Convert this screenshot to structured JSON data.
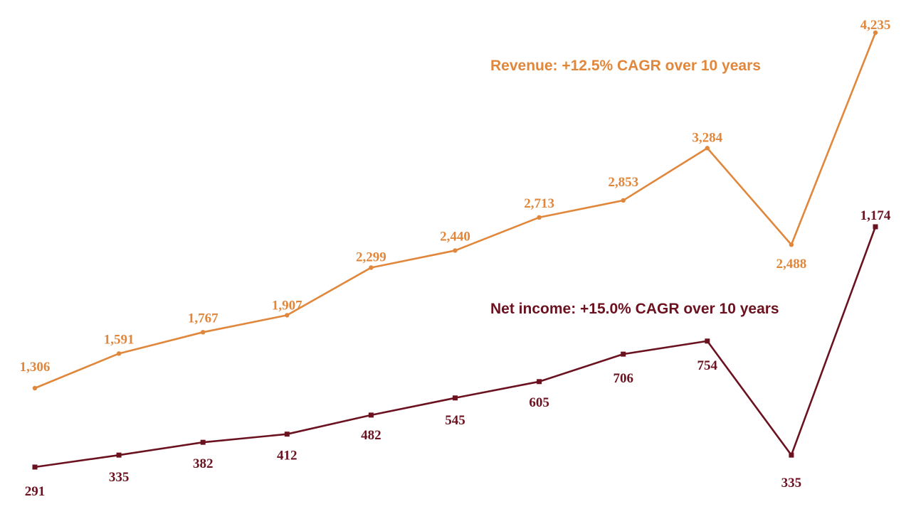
{
  "chart_data": {
    "type": "line",
    "title": "",
    "xlabel": "",
    "ylabel": "",
    "grid": false,
    "legend": "none",
    "categories": [
      "",
      "",
      "",
      "",
      "",
      "",
      "",
      "",
      "",
      "",
      ""
    ],
    "series": [
      {
        "key": "revenue",
        "color": "#e0873c",
        "values": [
          1306,
          1591,
          1767,
          1907,
          2299,
          2440,
          2713,
          2853,
          3284,
          2488,
          4235
        ],
        "labels": [
          "1,306",
          "1,591",
          "1,767",
          "1,907",
          "2,299",
          "2,440",
          "2,713",
          "2,853",
          "3,284",
          "2,488",
          "4,235"
        ]
      },
      {
        "key": "net_income",
        "color": "#6b1220",
        "values": [
          291,
          335,
          382,
          412,
          482,
          545,
          605,
          706,
          754,
          335,
          1174
        ],
        "labels": [
          "291",
          "335",
          "382",
          "412",
          "482",
          "545",
          "605",
          "706",
          "754",
          "335",
          "1,174"
        ]
      }
    ],
    "annotations": [
      {
        "series": "revenue",
        "text": "Revenue: +12.5% CAGR over 10 years"
      },
      {
        "series": "net_income",
        "text": "Net income: +15.0% CAGR over 10 years"
      }
    ]
  }
}
